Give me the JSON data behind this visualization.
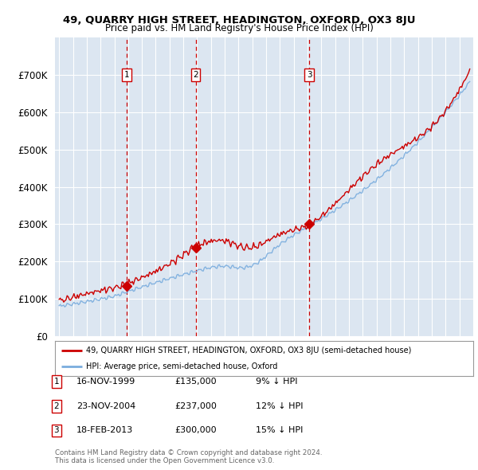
{
  "title1": "49, QUARRY HIGH STREET, HEADINGTON, OXFORD, OX3 8JU",
  "title2": "Price paid vs. HM Land Registry's House Price Index (HPI)",
  "legend_label_red": "49, QUARRY HIGH STREET, HEADINGTON, OXFORD, OX3 8JU (semi-detached house)",
  "legend_label_blue": "HPI: Average price, semi-detached house, Oxford",
  "footer": "Contains HM Land Registry data © Crown copyright and database right 2024.\nThis data is licensed under the Open Government Licence v3.0.",
  "transactions": [
    {
      "num": 1,
      "date": "16-NOV-1999",
      "price": 135000,
      "pct": "9%",
      "dir": "↓",
      "year_x": 1999.88
    },
    {
      "num": 2,
      "date": "23-NOV-2004",
      "price": 237000,
      "pct": "12%",
      "dir": "↓",
      "year_x": 2004.89
    },
    {
      "num": 3,
      "date": "18-FEB-2013",
      "price": 300000,
      "pct": "15%",
      "dir": "↓",
      "year_x": 2013.12
    }
  ],
  "background_color": "#dce6f1",
  "plot_bg_color": "#dce6f1",
  "grid_color": "#c8d4e8",
  "red_color": "#cc0000",
  "blue_color": "#7aadde",
  "ylim": [
    0,
    800000
  ],
  "yticks": [
    0,
    100000,
    200000,
    300000,
    400000,
    500000,
    600000,
    700000
  ],
  "xlim_start": 1994.7,
  "xlim_end": 2025.0
}
